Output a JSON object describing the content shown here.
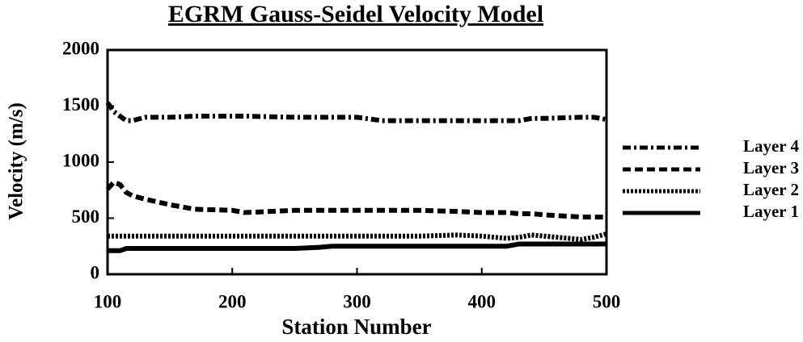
{
  "chart_data": {
    "type": "line",
    "title": "EGRM  Gauss-Seidel  Velocity  Model",
    "x_label": "Station  Number",
    "y_label": "Velocity  (m/s)",
    "x": [
      100,
      105,
      110,
      115,
      120,
      130,
      150,
      170,
      200,
      210,
      250,
      270,
      280,
      300,
      320,
      350,
      380,
      400,
      420,
      430,
      440,
      450,
      480,
      490,
      500
    ],
    "series": [
      {
        "name": "Layer 4",
        "color": "#000000",
        "dash": "dashdot",
        "values": [
          1530,
          1450,
          1410,
          1370,
          1370,
          1400,
          1400,
          1410,
          1410,
          1410,
          1400,
          1400,
          1400,
          1400,
          1370,
          1370,
          1370,
          1370,
          1370,
          1370,
          1390,
          1390,
          1400,
          1400,
          1380
        ]
      },
      {
        "name": "Layer 3",
        "color": "#000000",
        "dash": "dashed",
        "values": [
          760,
          820,
          800,
          730,
          700,
          670,
          620,
          580,
          570,
          550,
          570,
          570,
          570,
          570,
          570,
          570,
          560,
          550,
          550,
          540,
          540,
          530,
          510,
          510,
          510
        ]
      },
      {
        "name": "Layer 2",
        "color": "#000000",
        "dash": "dotted",
        "values": [
          340,
          340,
          340,
          340,
          340,
          340,
          340,
          340,
          340,
          340,
          340,
          340,
          340,
          340,
          340,
          340,
          350,
          340,
          320,
          330,
          350,
          340,
          310,
          330,
          360
        ]
      },
      {
        "name": "Layer 1",
        "color": "#000000",
        "dash": "solid",
        "values": [
          210,
          210,
          210,
          230,
          230,
          230,
          230,
          230,
          230,
          230,
          230,
          240,
          250,
          250,
          250,
          250,
          250,
          250,
          250,
          270,
          270,
          270,
          270,
          270,
          270
        ]
      }
    ],
    "xlim": [
      100,
      500
    ],
    "xticks": [
      100,
      200,
      300,
      400,
      500
    ],
    "ylim": [
      0,
      2000
    ],
    "yticks": [
      0,
      500,
      1000,
      1500,
      2000
    ],
    "grid": false,
    "legend": "right"
  }
}
